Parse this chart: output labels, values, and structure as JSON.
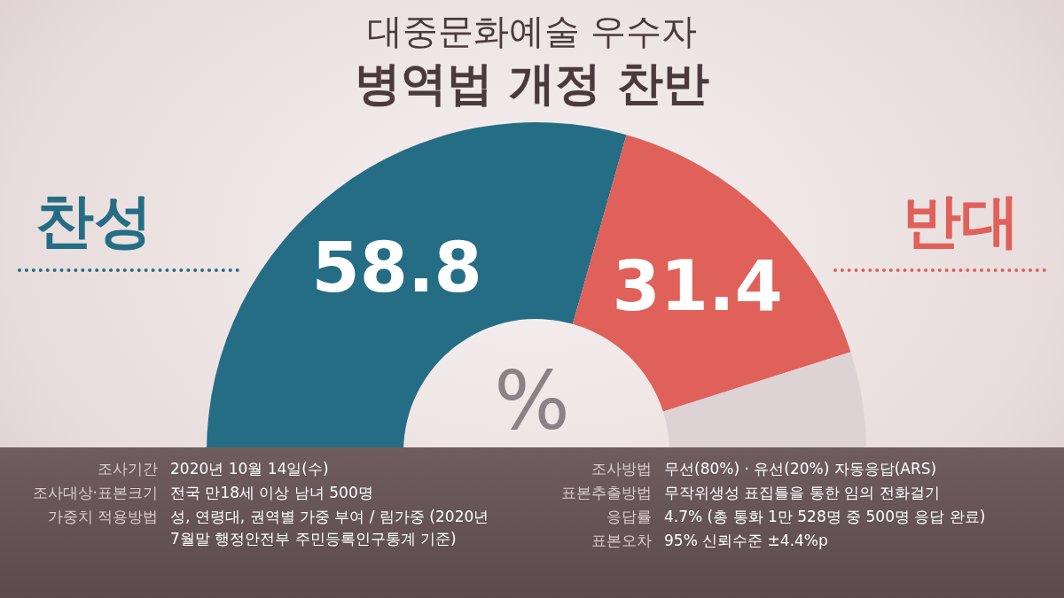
{
  "chart_data": {
    "type": "donut",
    "subtitle": "대중문화예술 우수자",
    "title": "병역법 개정 찬반",
    "categories": [
      "찬성",
      "반대",
      null
    ],
    "values": [
      58.8,
      31.4,
      9.8
    ],
    "colors": [
      "#256d85",
      "#e0605a",
      "#ddd3d4"
    ],
    "value_labels": [
      "58.8",
      "31.4",
      null
    ],
    "annotations": [
      "%",
      "조사기간",
      "2020년 10월 14일(수)",
      "조사대상·표본크기",
      "전국 만18세 이상 남녀 500명",
      "가중치 적용방법",
      "성, 연령대, 권역별 가중 부여 / 림가중 (2020년 7월말 행정안전부 주민등록인구통계 기준)",
      "조사방법",
      "무선(80%) · 유선(20%) 자동응답(ARS)",
      "표본추출방법",
      "무작위생성 표집틀을 통한 임의 전화걸기",
      "응답률",
      "4.7% (총 통화 1만 528명 중 500명 응답 완료)",
      "표본오차",
      "95% 신뢰수준 ±4.4%p"
    ]
  }
}
